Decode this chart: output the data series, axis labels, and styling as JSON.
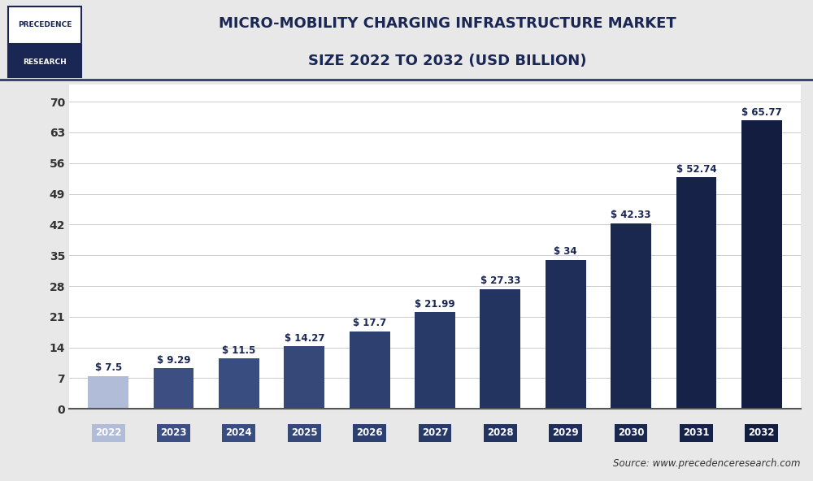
{
  "title_line1": "MICRO-MOBILITY CHARGING INFRASTRUCTURE MARKET",
  "title_line2": "SIZE 2022 TO 2032 (USD BILLION)",
  "years": [
    2022,
    2023,
    2024,
    2025,
    2026,
    2027,
    2028,
    2029,
    2030,
    2031,
    2032
  ],
  "values": [
    7.5,
    9.29,
    11.5,
    14.27,
    17.7,
    21.99,
    27.33,
    34,
    42.33,
    52.74,
    65.77
  ],
  "labels": [
    "$ 7.5",
    "$ 9.29",
    "$ 11.5",
    "$ 14.27",
    "$ 17.7",
    "$ 21.99",
    "$ 27.33",
    "$ 34",
    "$ 42.33",
    "$ 52.74",
    "$ 65.77"
  ],
  "bar_colors": [
    "#b0bcd8",
    "#3d4f82",
    "#3a4d80",
    "#354878",
    "#2e4070",
    "#283a68",
    "#233460",
    "#1e2e58",
    "#1a2850",
    "#172248",
    "#131d40"
  ],
  "tick_label_colors": [
    "#b0bcd8",
    "#3d4f82",
    "#3a4d80",
    "#354878",
    "#2e4070",
    "#283a68",
    "#233460",
    "#1e2e58",
    "#1a2850",
    "#172248",
    "#131d40"
  ],
  "yticks": [
    0,
    7,
    14,
    21,
    28,
    35,
    42,
    49,
    56,
    63,
    70
  ],
  "ylim": [
    0,
    74
  ],
  "header_bg_color": "#e8e8e8",
  "chart_bg_color": "#ffffff",
  "title_color": "#1a2755",
  "axis_label_color": "#333333",
  "source_text": "Source: www.precedenceresearch.com",
  "logo_text_line1": "PRECEDENCE",
  "logo_text_line2": "RESEARCH",
  "logo_border_color": "#1a2755",
  "logo_bg_color": "#1a2755",
  "header_line_color": "#2d3a6b"
}
